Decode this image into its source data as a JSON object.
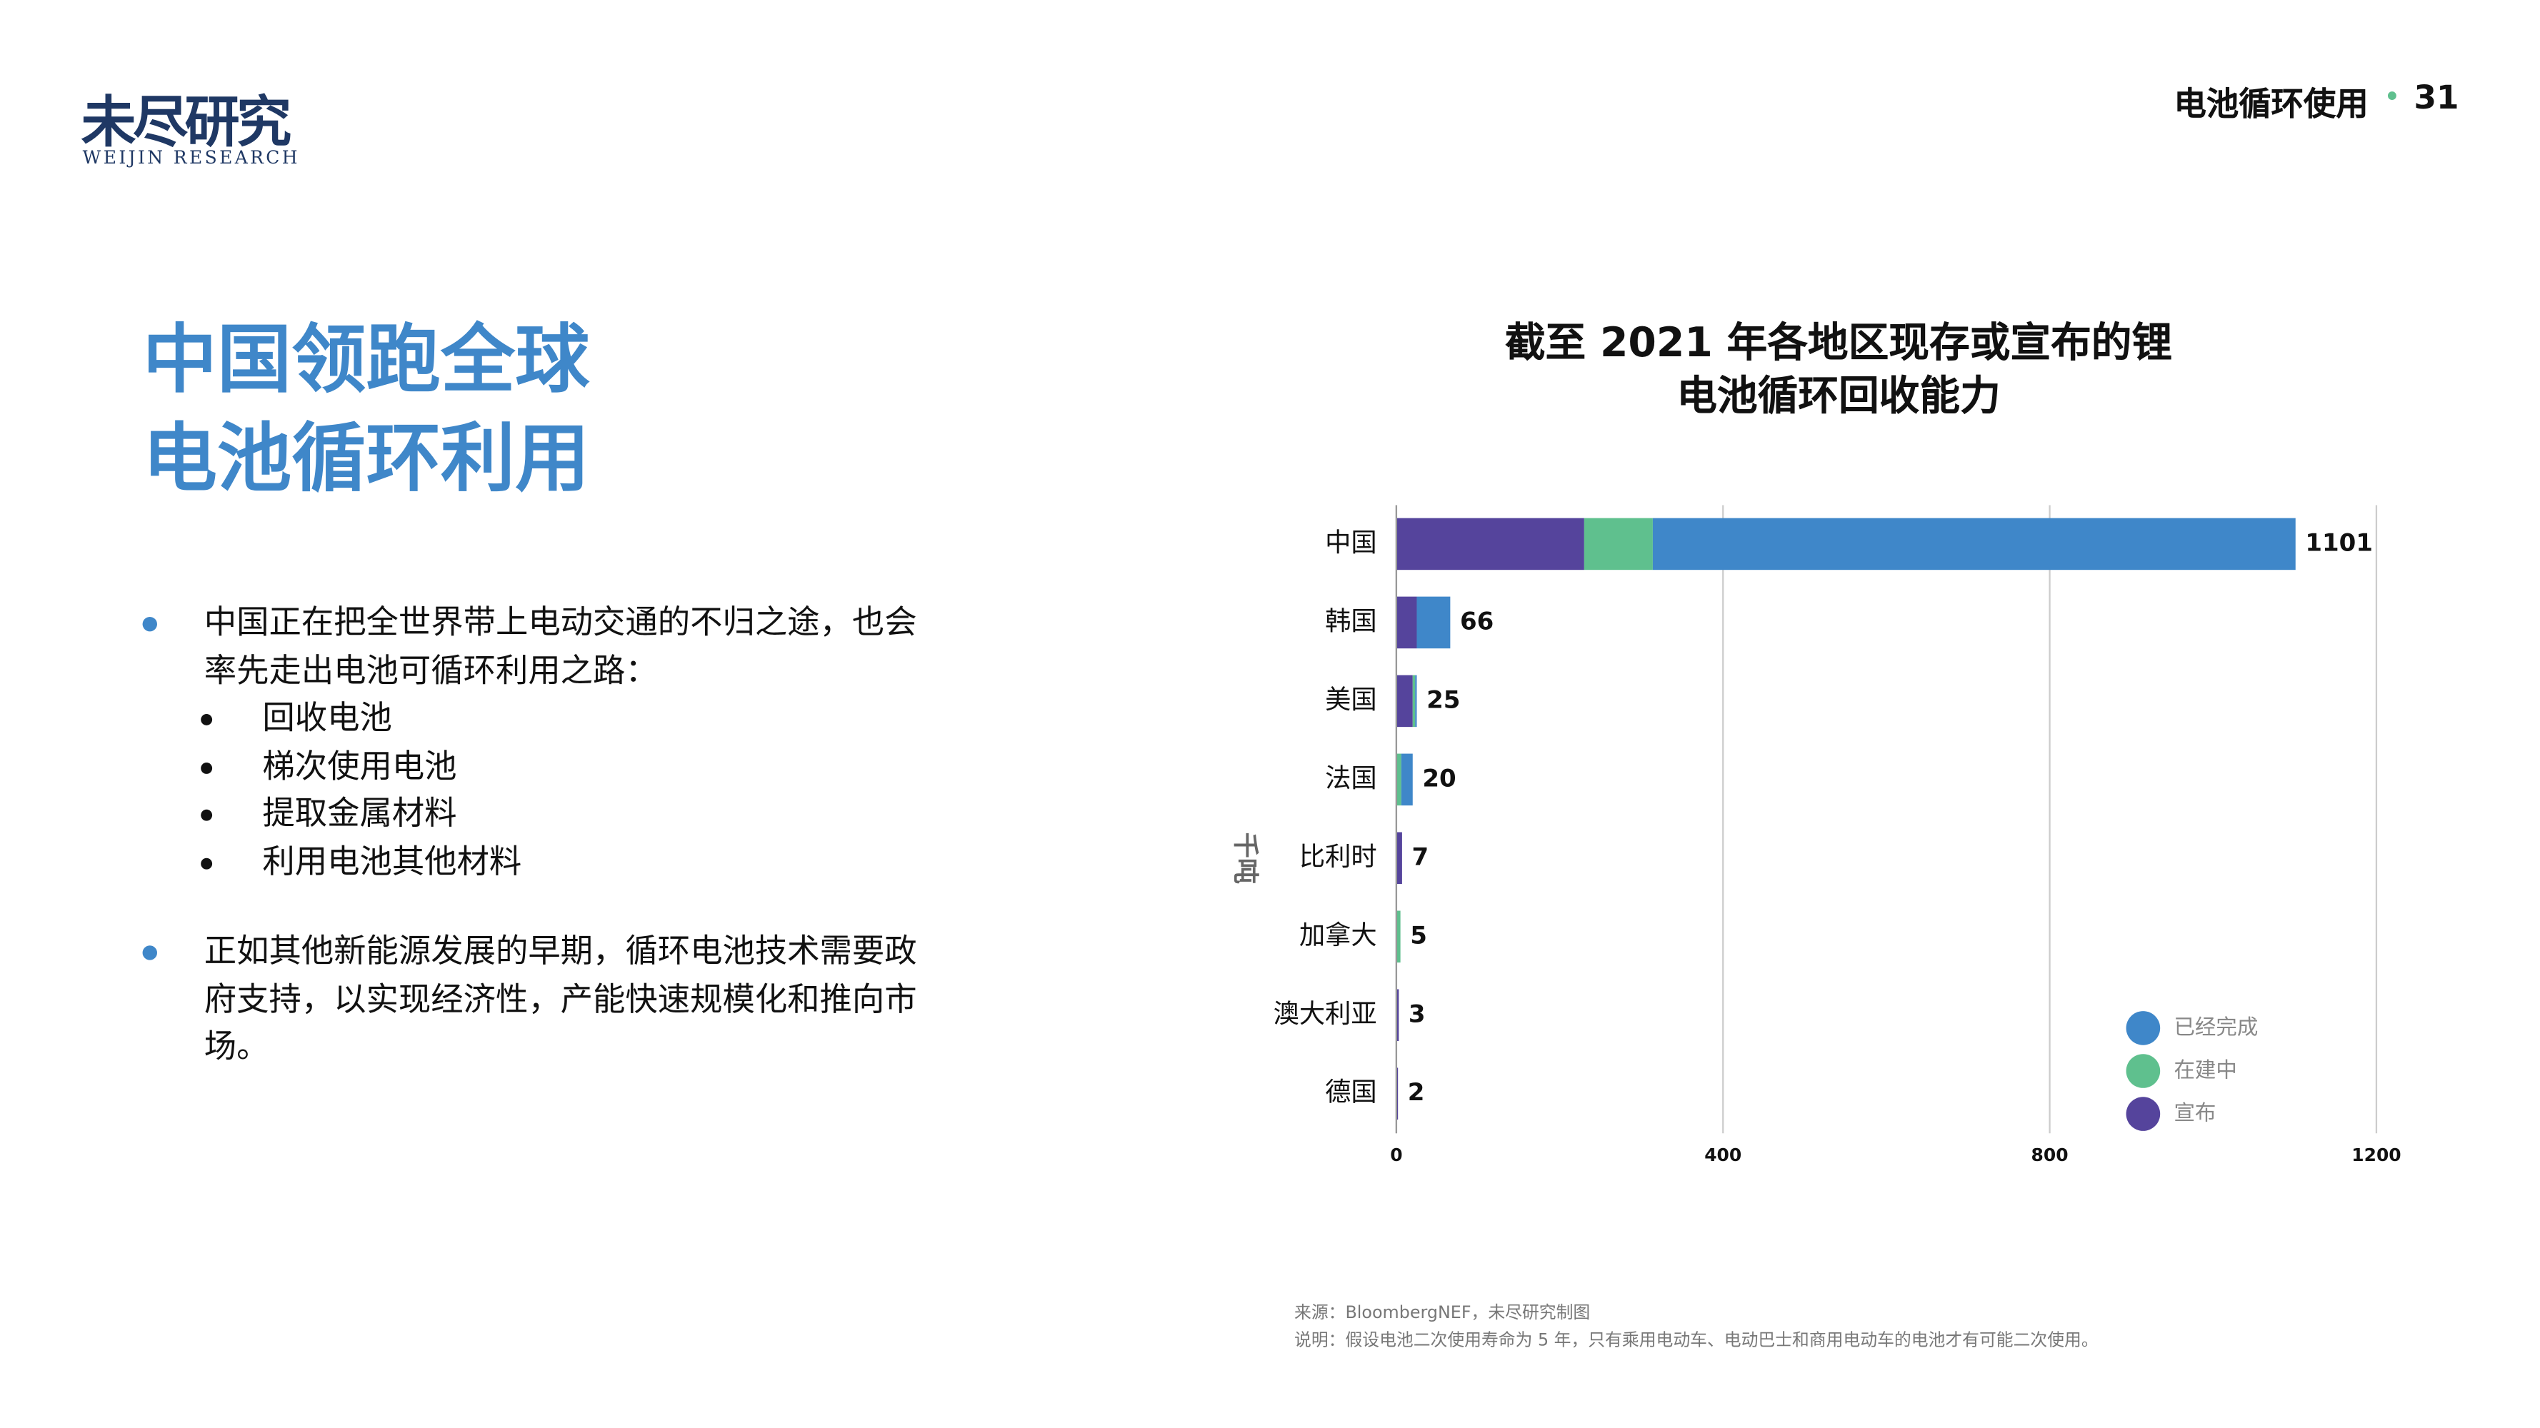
{
  "header": {
    "logo": "未尽研究",
    "logo_sub": "WEIJIN RESEARCH",
    "section": "电池循环使用",
    "page": "31"
  },
  "headline": [
    "中国领跑全球",
    "电池循环利用"
  ],
  "bullets": [
    {
      "text": "中国正在把全世界带上电动交通的不归之途，也会率先走出电池可循环利用之路：",
      "items": [
        "回收电池",
        "梯次使用电池",
        "提取金属材料",
        "利用电池其他材料"
      ]
    },
    {
      "text": "正如其他新能源发展的早期，循环电池技术需要政府支持，以实现经济性，产能快速规模化和推向市场。",
      "items": []
    }
  ],
  "chart_data": {
    "type": "stacked-barh",
    "title": "截至 2021 年各地区现存或宣布的锂电池循环回收能力",
    "y_label": "千吨",
    "categories": [
      "中国",
      "韩国",
      "美国",
      "法国",
      "比利时",
      "加拿大",
      "澳大利亚",
      "德国"
    ],
    "series": [
      {
        "name": "宣布",
        "color": "#55449c",
        "values": [
          230,
          25,
          20,
          0,
          7,
          0,
          3,
          2
        ]
      },
      {
        "name": "在建中",
        "color": "#5fc08e",
        "values": [
          84,
          0,
          3,
          6,
          0,
          5,
          0,
          0
        ]
      },
      {
        "name": "已经完成",
        "color": "#3f87c9",
        "values": [
          787,
          41,
          2,
          14,
          0,
          0,
          0,
          0
        ]
      }
    ],
    "totals": [
      1101,
      66,
      25,
      20,
      7,
      5,
      3,
      2
    ],
    "xlim": [
      0,
      1200
    ],
    "xticks": [
      0,
      400,
      800,
      1200
    ],
    "grid": true
  },
  "footer": {
    "source": "来源：BloombergNEF，未尽研究制图",
    "note": "说明：假设电池二次使用寿命为 5 年，只有乘用电动车、电动巴士和商用电动车的电池才有可能二次使用。"
  }
}
